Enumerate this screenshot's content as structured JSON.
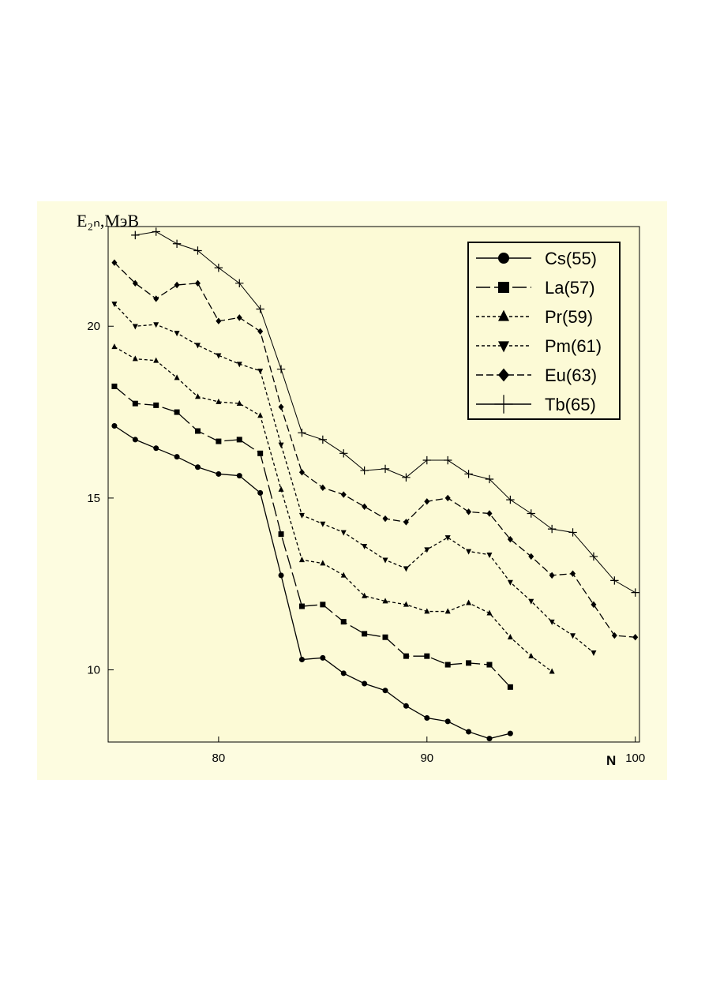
{
  "chart_data": {
    "type": "line",
    "ylabel": "E₂ₙ,МэВ",
    "xlabel": "N",
    "xlim": [
      74.7,
      100.2
    ],
    "ylim": [
      7.9,
      22.9
    ],
    "xticks": [
      80,
      90,
      100
    ],
    "yticks": [
      10,
      15,
      20
    ],
    "legend": "upper right",
    "series": [
      {
        "name": "Cs(55)",
        "color": "#000000",
        "marker": "circle",
        "dash": "solid",
        "x": [
          75,
          76,
          77,
          78,
          79,
          80,
          81,
          82,
          83,
          84,
          85,
          86,
          87,
          88,
          89,
          90,
          91,
          92,
          93,
          94
        ],
        "values": [
          17.1,
          16.7,
          16.45,
          16.2,
          15.9,
          15.7,
          15.65,
          15.15,
          12.75,
          10.3,
          10.35,
          9.9,
          9.6,
          9.4,
          8.95,
          8.6,
          8.5,
          8.2,
          8.0,
          8.15
        ]
      },
      {
        "name": "La(57)",
        "color": "#000000",
        "marker": "square",
        "dash": "long",
        "x": [
          75,
          76,
          77,
          78,
          79,
          80,
          81,
          82,
          83,
          84,
          85,
          86,
          87,
          88,
          89,
          90,
          91,
          92,
          93,
          94
        ],
        "values": [
          18.25,
          17.75,
          17.7,
          17.5,
          16.95,
          16.65,
          16.7,
          16.3,
          13.95,
          11.85,
          11.9,
          11.4,
          11.05,
          10.95,
          10.4,
          10.4,
          10.15,
          10.2,
          10.15,
          9.5
        ]
      },
      {
        "name": "Pr(59)",
        "color": "#000000",
        "marker": "triangle-up",
        "dash": "short",
        "x": [
          75,
          76,
          77,
          78,
          79,
          80,
          81,
          82,
          83,
          84,
          85,
          86,
          87,
          88,
          89,
          90,
          91,
          92,
          93,
          94,
          95,
          96
        ],
        "values": [
          19.4,
          19.05,
          19.0,
          18.5,
          17.95,
          17.8,
          17.75,
          17.4,
          15.25,
          13.2,
          13.1,
          12.75,
          12.15,
          12.0,
          11.9,
          11.7,
          11.7,
          11.95,
          11.65,
          10.95,
          10.4,
          9.95
        ]
      },
      {
        "name": "Pm(61)",
        "color": "#000000",
        "marker": "triangle-down",
        "dash": "short",
        "x": [
          75,
          76,
          77,
          78,
          79,
          80,
          81,
          82,
          83,
          84,
          85,
          86,
          87,
          88,
          89,
          90,
          91,
          92,
          93,
          94,
          95,
          96,
          97,
          98
        ],
        "values": [
          20.65,
          20.0,
          20.05,
          19.8,
          19.45,
          19.15,
          18.9,
          18.7,
          16.55,
          14.5,
          14.25,
          14.0,
          13.6,
          13.2,
          12.95,
          13.5,
          13.85,
          13.45,
          13.35,
          12.55,
          12.0,
          11.4,
          11.0,
          10.5
        ]
      },
      {
        "name": "Eu(63)",
        "color": "#000000",
        "marker": "diamond",
        "dash": "medium",
        "x": [
          75,
          76,
          77,
          78,
          79,
          80,
          81,
          82,
          83,
          84,
          85,
          86,
          87,
          88,
          89,
          90,
          91,
          92,
          93,
          94,
          95,
          96,
          97,
          98,
          99,
          100
        ],
        "values": [
          21.85,
          21.25,
          20.8,
          21.2,
          21.25,
          20.15,
          20.25,
          19.85,
          17.65,
          15.75,
          15.3,
          15.1,
          14.75,
          14.4,
          14.3,
          14.9,
          15.0,
          14.6,
          14.55,
          13.8,
          13.3,
          12.75,
          12.8,
          11.9,
          11.0,
          10.95
        ]
      },
      {
        "name": "Tb(65)",
        "color": "#000000",
        "marker": "plus",
        "dash": "solid",
        "x": [
          76,
          77,
          78,
          79,
          80,
          81,
          82,
          83,
          84,
          85,
          86,
          87,
          88,
          89,
          90,
          91,
          92,
          93,
          94,
          95,
          96,
          97,
          98,
          99,
          100
        ],
        "values": [
          22.65,
          22.75,
          22.4,
          22.2,
          21.7,
          21.25,
          20.5,
          18.75,
          16.9,
          16.7,
          16.3,
          15.8,
          15.85,
          15.6,
          16.1,
          16.1,
          15.7,
          15.55,
          14.95,
          14.55,
          14.1,
          14.0,
          13.3,
          12.6,
          12.25
        ]
      }
    ]
  }
}
